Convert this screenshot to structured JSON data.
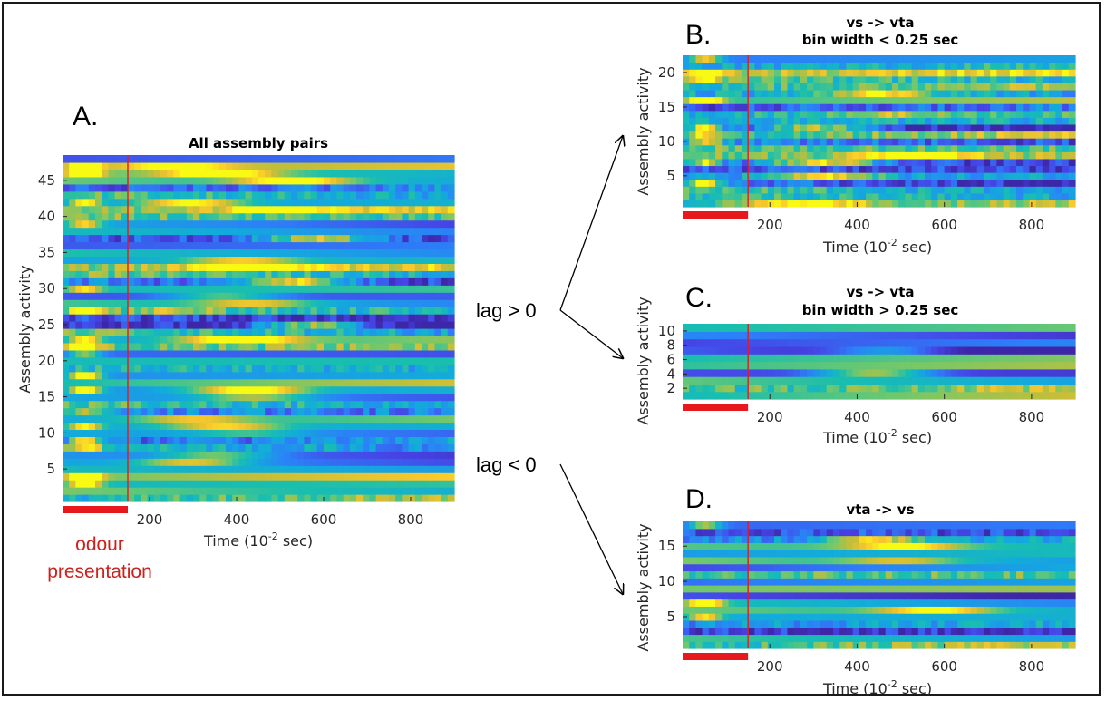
{
  "annotations": {
    "lag_pos": "lag > 0",
    "lag_neg": "lag < 0",
    "odour_line1": "odour",
    "odour_line2": "presentation",
    "stimulus_color": "#e8191d"
  },
  "chart_data": [
    {
      "id": "A",
      "type": "heatmap",
      "letter": "A.",
      "title": "All assembly pairs",
      "title2": "",
      "ylabel": "Assembly activity",
      "xlabel_base": "Time (10",
      "xlabel_exp": "-2",
      "xlabel_tail": " sec)",
      "xlim": [
        0,
        900
      ],
      "ylim": [
        0.5,
        48.5
      ],
      "rows": 48,
      "xticks": [
        200,
        400,
        600,
        800
      ],
      "yticks": [
        5,
        10,
        15,
        20,
        25,
        30,
        35,
        40,
        45
      ],
      "stimulus_onset": 150,
      "stimulus_bar": [
        0,
        150
      ],
      "colormap": "parula"
    },
    {
      "id": "B",
      "type": "heatmap",
      "letter": "B.",
      "title": "vs -> vta",
      "title2": "bin width < 0.25 sec",
      "ylabel": "Assembly activity",
      "xlabel_base": "Time (10",
      "xlabel_exp": "-2",
      "xlabel_tail": " sec)",
      "xlim": [
        0,
        900
      ],
      "ylim": [
        0.5,
        22.5
      ],
      "rows": 22,
      "xticks": [
        200,
        400,
        600,
        800
      ],
      "yticks": [
        5,
        10,
        15,
        20
      ],
      "stimulus_onset": 150,
      "stimulus_bar": [
        0,
        150
      ],
      "colormap": "parula"
    },
    {
      "id": "C",
      "type": "heatmap",
      "letter": "C.",
      "title": "vs -> vta",
      "title2": "bin width > 0.25 sec",
      "ylabel": "Assembly activity",
      "xlabel_base": "Time (10",
      "xlabel_exp": "-2",
      "xlabel_tail": " sec)",
      "xlim": [
        0,
        900
      ],
      "ylim": [
        0.5,
        11
      ],
      "rows": 10,
      "xticks": [
        200,
        400,
        600,
        800
      ],
      "yticks": [
        2,
        4,
        6,
        8,
        10
      ],
      "stimulus_onset": 150,
      "stimulus_bar": [
        0,
        150
      ],
      "colormap": "parula"
    },
    {
      "id": "D",
      "type": "heatmap",
      "letter": "D.",
      "title": "vta -> vs",
      "title2": "",
      "ylabel": "Assembly activity",
      "xlabel_base": "Time (10",
      "xlabel_exp": "-2",
      "xlabel_tail": " sec)",
      "xlim": [
        0,
        900
      ],
      "ylim": [
        0.5,
        18.5
      ],
      "rows": 18,
      "xticks": [
        200,
        400,
        600,
        800
      ],
      "yticks": [
        5,
        10,
        15
      ],
      "stimulus_onset": 150,
      "stimulus_bar": [
        0,
        150
      ],
      "colormap": "parula"
    }
  ]
}
